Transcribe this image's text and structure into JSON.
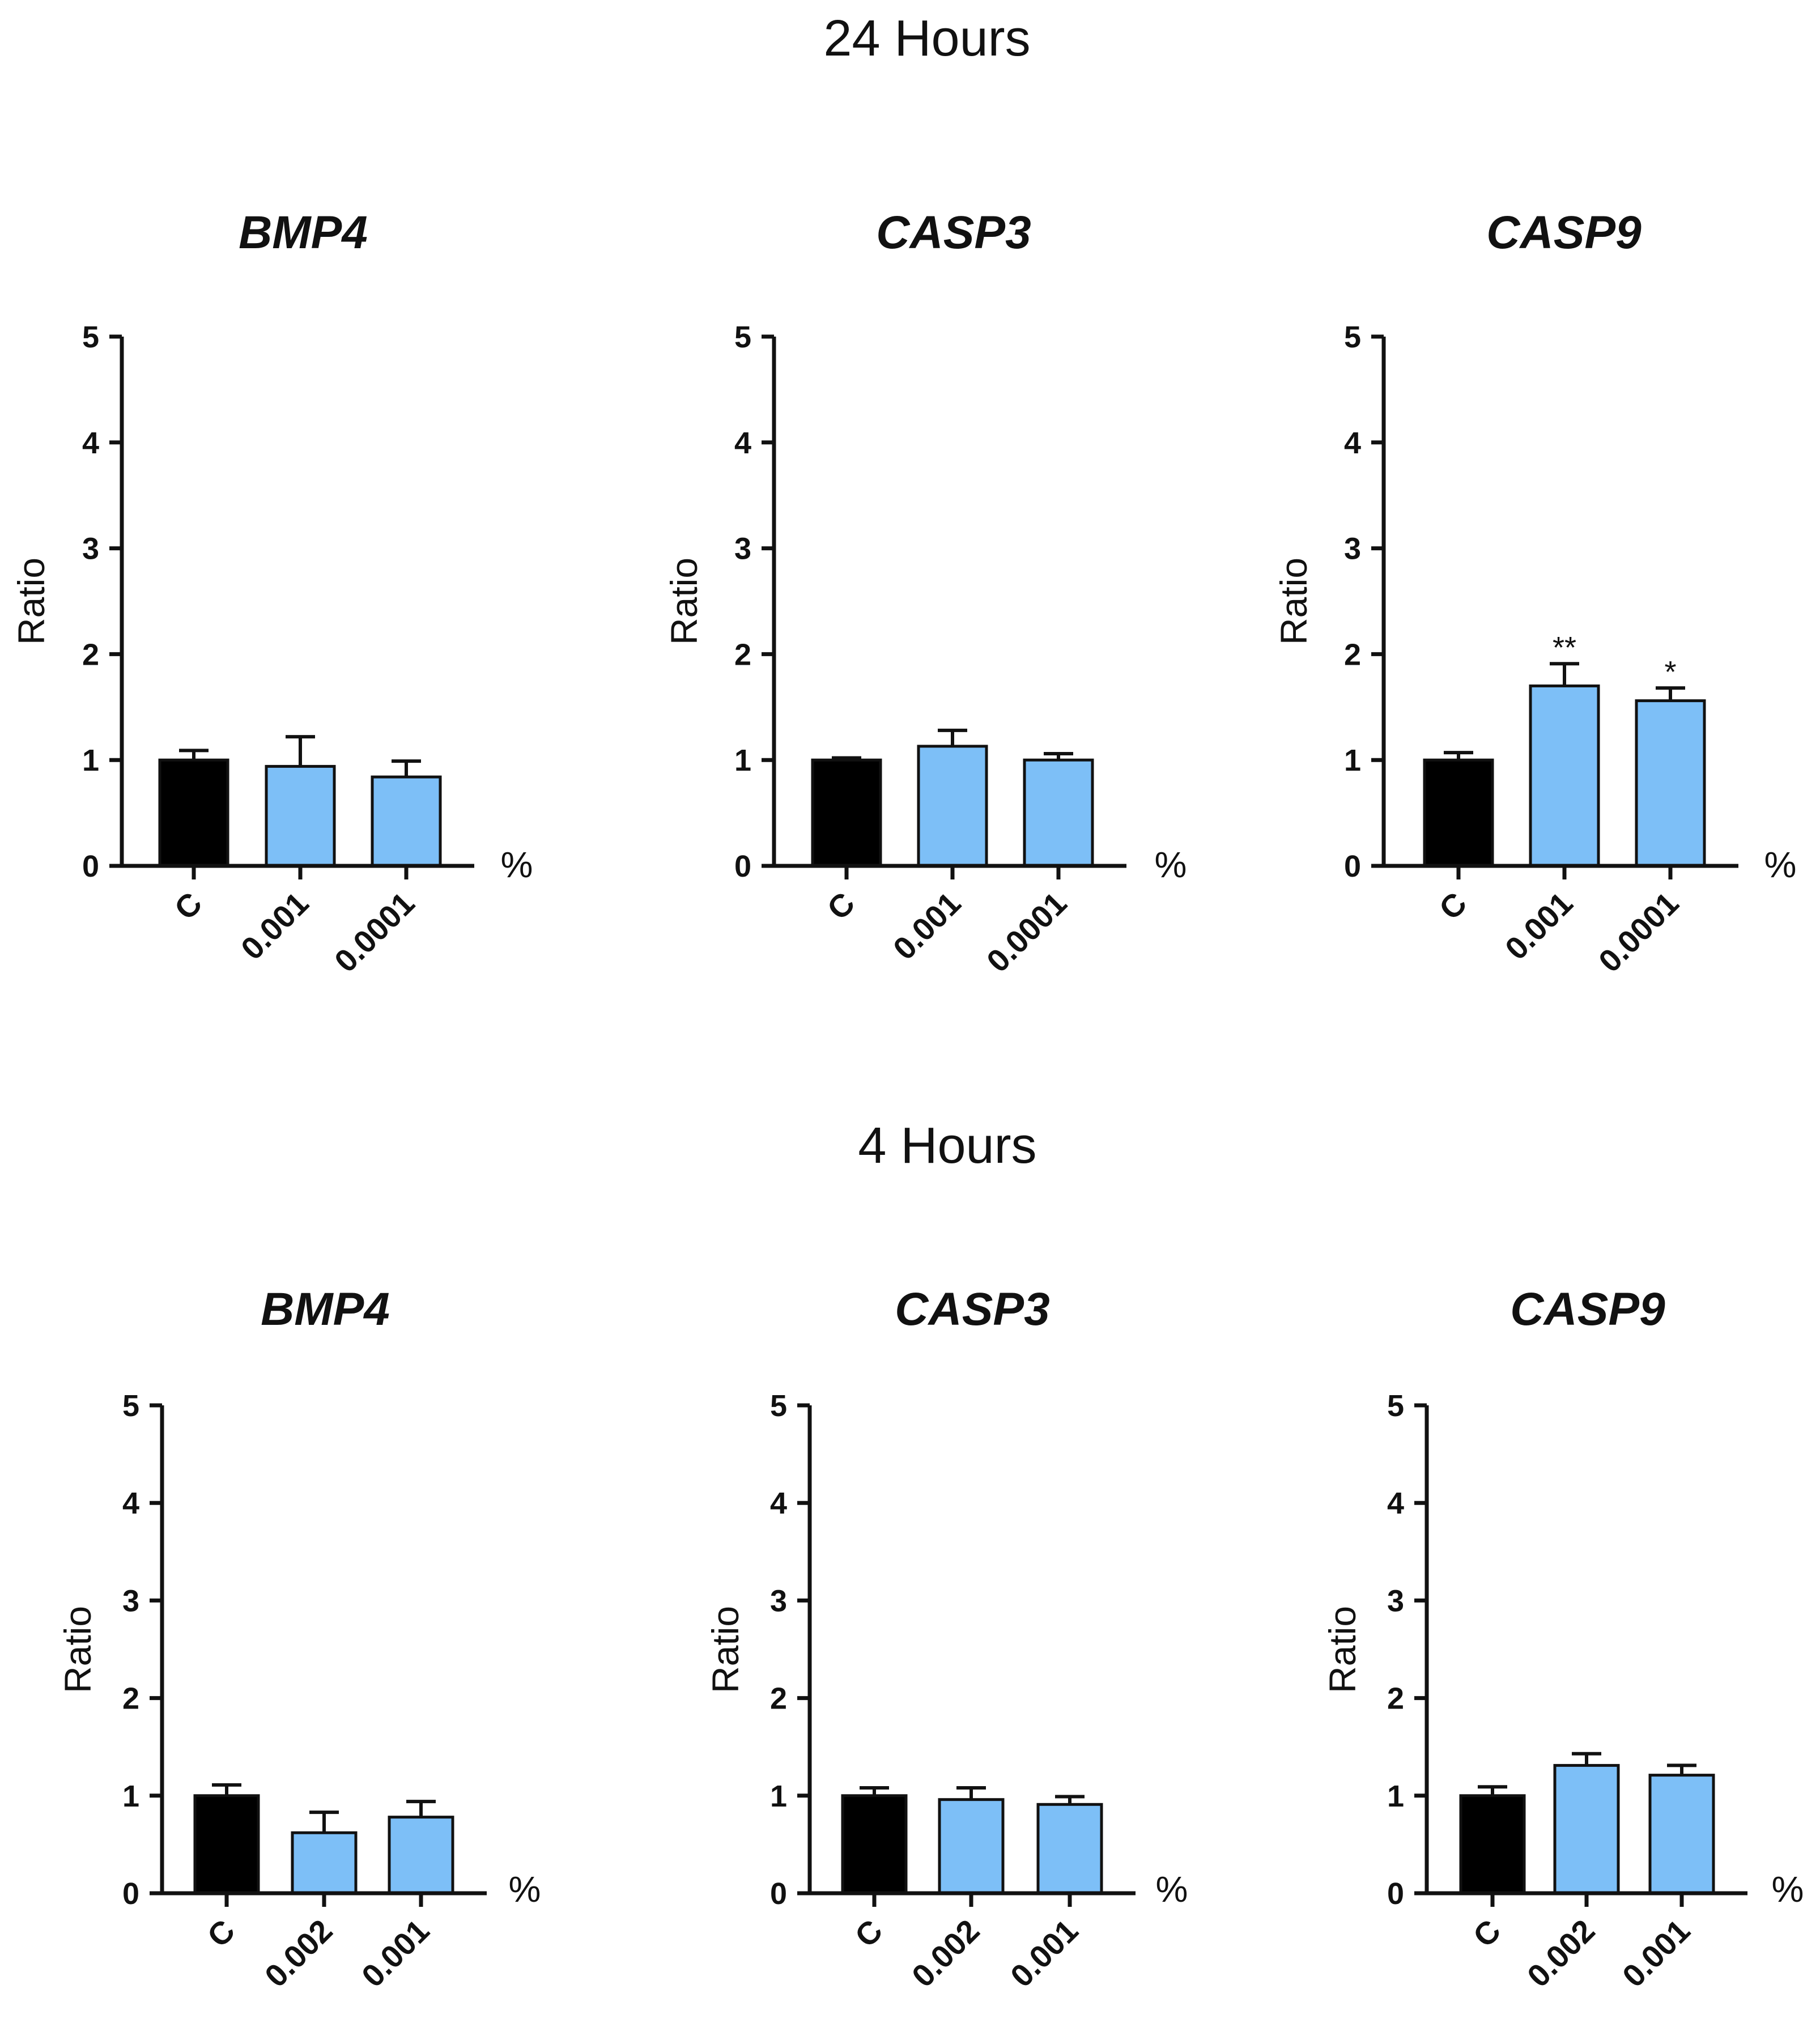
{
  "colors": {
    "control_bar": "#000000",
    "treatment_bar": "#7dbff7",
    "axis": "#111111"
  },
  "sections": [
    {
      "title": "24 Hours"
    },
    {
      "title": "4 Hours"
    }
  ],
  "chart_data": [
    {
      "type": "bar",
      "section": "24 Hours",
      "title": "BMP4",
      "categories": [
        "C",
        "0.001",
        "0.0001"
      ],
      "values": [
        1.0,
        0.94,
        0.84
      ],
      "errors": [
        0.09,
        0.28,
        0.15
      ],
      "significance": [
        "",
        "",
        ""
      ],
      "ylabel": "Ratio",
      "unit": "%",
      "ylim": [
        0,
        5
      ],
      "yticks": [
        "0",
        "1",
        "2",
        "3",
        "4",
        "5"
      ]
    },
    {
      "type": "bar",
      "section": "24 Hours",
      "title": "CASP3",
      "categories": [
        "C",
        "0.001",
        "0.0001"
      ],
      "values": [
        1.0,
        1.13,
        1.0
      ],
      "errors": [
        0.02,
        0.15,
        0.06
      ],
      "significance": [
        "",
        "",
        ""
      ],
      "ylabel": "Ratio",
      "unit": "%",
      "ylim": [
        0,
        5
      ],
      "yticks": [
        "0",
        "1",
        "2",
        "3",
        "4",
        "5"
      ]
    },
    {
      "type": "bar",
      "section": "24 Hours",
      "title": "CASP9",
      "categories": [
        "C",
        "0.001",
        "0.0001"
      ],
      "values": [
        1.0,
        1.7,
        1.56
      ],
      "errors": [
        0.07,
        0.21,
        0.12
      ],
      "significance": [
        "",
        "**",
        "*"
      ],
      "ylabel": "Ratio",
      "unit": "%",
      "ylim": [
        0,
        5
      ],
      "yticks": [
        "0",
        "1",
        "2",
        "3",
        "4",
        "5"
      ]
    },
    {
      "type": "bar",
      "section": "4 Hours",
      "title": "BMP4",
      "categories": [
        "C",
        "0.002",
        "0.001"
      ],
      "values": [
        1.0,
        0.62,
        0.78
      ],
      "errors": [
        0.11,
        0.21,
        0.16
      ],
      "significance": [
        "",
        "",
        ""
      ],
      "ylabel": "Ratio",
      "unit": "%",
      "ylim": [
        0,
        5
      ],
      "yticks": [
        "0",
        "1",
        "2",
        "3",
        "4",
        "5"
      ]
    },
    {
      "type": "bar",
      "section": "4 Hours",
      "title": "CASP3",
      "categories": [
        "C",
        "0.002",
        "0.001"
      ],
      "values": [
        1.0,
        0.96,
        0.91
      ],
      "errors": [
        0.08,
        0.12,
        0.08
      ],
      "significance": [
        "",
        "",
        ""
      ],
      "ylabel": "Ratio",
      "unit": "%",
      "ylim": [
        0,
        5
      ],
      "yticks": [
        "0",
        "1",
        "2",
        "3",
        "4",
        "5"
      ]
    },
    {
      "type": "bar",
      "section": "4 Hours",
      "title": "CASP9",
      "categories": [
        "C",
        "0.002",
        "0.001"
      ],
      "values": [
        1.0,
        1.31,
        1.21
      ],
      "errors": [
        0.09,
        0.12,
        0.1
      ],
      "significance": [
        "",
        "",
        ""
      ],
      "ylabel": "Ratio",
      "unit": "%",
      "ylim": [
        0,
        5
      ],
      "yticks": [
        "0",
        "1",
        "2",
        "3",
        "4",
        "5"
      ]
    }
  ]
}
